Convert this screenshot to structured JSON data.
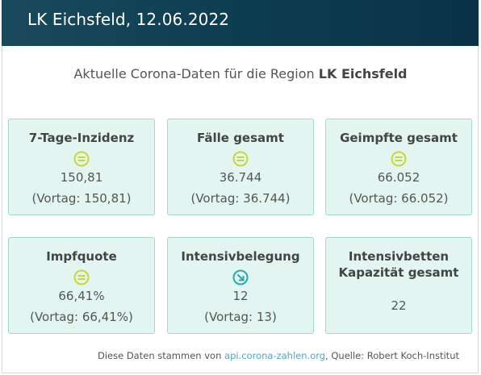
{
  "header": {
    "title": "LK Eichsfeld, 12.06.2022"
  },
  "intro": {
    "prefix": "Aktuelle Corona-Daten für die Region",
    "region": "LK Eichsfeld"
  },
  "cards": [
    {
      "title": "7-Tage-Inzidenz",
      "icon": "equal-trend-icon",
      "value": "150,81",
      "previous": "(Vortag: 150,81)"
    },
    {
      "title": "Fälle gesamt",
      "icon": "equal-trend-icon",
      "value": "36.744",
      "previous": "(Vortag: 36.744)"
    },
    {
      "title": "Geimpfte gesamt",
      "icon": "equal-trend-icon",
      "value": "66.052",
      "previous": "(Vortag: 66.052)"
    },
    {
      "title": "Impfquote",
      "icon": "equal-trend-icon",
      "value": "66,41%",
      "previous": "(Vortag: 66,41%)"
    },
    {
      "title": "Intensivbelegung",
      "icon": "decrease-trend-icon",
      "value": "12",
      "previous": "(Vortag: 13)"
    },
    {
      "title": "Intensivbetten Kapazität gesamt",
      "value": "22"
    }
  ],
  "footer": {
    "prefix": "Diese Daten stammen von",
    "link_text": "api.corona-zahlen.org",
    "suffix": ", Quelle: Robert Koch-Institut"
  },
  "colors": {
    "header_bg": "#0d3e52",
    "card_bg": "#e2f5f1",
    "card_border": "#9ed9cc",
    "equal_icon": "#c9d633",
    "decrease_icon": "#2aa7b0",
    "link": "#4aa8c6"
  }
}
